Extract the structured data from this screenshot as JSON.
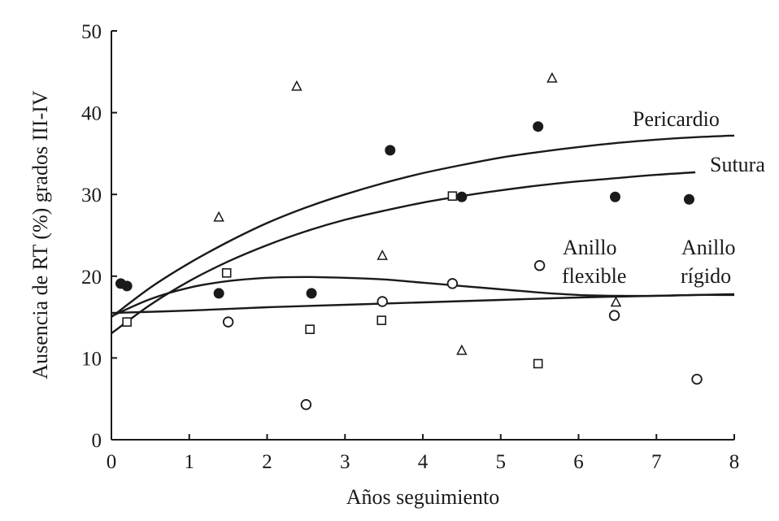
{
  "chart_data": {
    "type": "scatter",
    "xlabel": "Años seguimiento",
    "ylabel": "Ausencia de RT (%) grados III-IV",
    "xlim": [
      0,
      8
    ],
    "ylim": [
      0,
      50
    ],
    "x_ticks": [
      "0",
      "1",
      "2",
      "3",
      "4",
      "5",
      "6",
      "7",
      "8"
    ],
    "y_ticks": [
      "0",
      "10",
      "20",
      "30",
      "40",
      "50"
    ],
    "grid": false,
    "series": [
      {
        "marker": "filled-circle",
        "points": [
          [
            0.12,
            19.1
          ],
          [
            0.2,
            18.8
          ],
          [
            1.38,
            17.9
          ],
          [
            2.57,
            17.9
          ],
          [
            3.58,
            35.4
          ],
          [
            4.5,
            29.7
          ],
          [
            5.48,
            38.3
          ],
          [
            6.47,
            29.7
          ],
          [
            7.42,
            29.4
          ]
        ]
      },
      {
        "marker": "triangle",
        "points": [
          [
            1.38,
            27.2
          ],
          [
            2.38,
            43.2
          ],
          [
            3.48,
            22.5
          ],
          [
            4.5,
            10.9
          ],
          [
            5.66,
            44.2
          ],
          [
            6.48,
            16.8
          ]
        ]
      },
      {
        "marker": "open-square",
        "points": [
          [
            0.2,
            14.4
          ],
          [
            1.48,
            20.4
          ],
          [
            2.55,
            13.5
          ],
          [
            3.47,
            14.6
          ],
          [
            4.38,
            29.8
          ],
          [
            5.48,
            9.3
          ]
        ]
      },
      {
        "marker": "open-circle",
        "points": [
          [
            1.5,
            14.4
          ],
          [
            2.5,
            4.3
          ],
          [
            3.48,
            16.9
          ],
          [
            4.38,
            19.1
          ],
          [
            5.5,
            21.3
          ],
          [
            6.46,
            15.2
          ],
          [
            7.52,
            7.4
          ]
        ]
      }
    ],
    "curves": [
      {
        "label": "Pericardio",
        "x": [
          0,
          0.5,
          1,
          1.5,
          2,
          2.5,
          3,
          3.5,
          4,
          4.5,
          5,
          5.5,
          6,
          6.5,
          7,
          7.5,
          8
        ],
        "y": [
          15.0,
          18.6,
          21.6,
          24.2,
          26.5,
          28.4,
          30.0,
          31.4,
          32.6,
          33.6,
          34.5,
          35.2,
          35.8,
          36.3,
          36.7,
          37.0,
          37.2
        ]
      },
      {
        "label": "Sutura",
        "x": [
          0,
          0.5,
          1,
          1.5,
          2,
          2.5,
          3,
          3.5,
          4,
          4.5,
          5,
          5.5,
          6,
          6.5,
          7,
          7.5
        ],
        "y": [
          13.0,
          16.5,
          19.4,
          21.8,
          23.8,
          25.5,
          26.9,
          28.0,
          29.0,
          29.8,
          30.5,
          31.1,
          31.6,
          32.0,
          32.4,
          32.7
        ]
      },
      {
        "label": "Anillo flexible",
        "x": [
          0,
          0.5,
          1,
          1.5,
          2,
          2.5,
          3,
          3.5,
          4,
          4.5,
          5,
          5.5,
          6,
          6.5,
          7,
          7.5,
          8
        ],
        "y": [
          15.1,
          17.2,
          18.6,
          19.4,
          19.8,
          19.9,
          19.8,
          19.6,
          19.2,
          18.8,
          18.4,
          18.0,
          17.7,
          17.6,
          17.6,
          17.7,
          17.7
        ]
      },
      {
        "label": "Anillo rígido",
        "x": [
          0,
          1,
          2,
          3,
          4,
          5,
          6,
          7,
          8
        ],
        "y": [
          15.5,
          15.8,
          16.2,
          16.5,
          16.8,
          17.1,
          17.4,
          17.6,
          17.8
        ]
      }
    ],
    "annotations": [
      {
        "text": "Pericardio"
      },
      {
        "text": "Sutura"
      },
      {
        "text": "Anillo",
        "text2": "flexible"
      },
      {
        "text": "Anillo",
        "text2": "rígido"
      }
    ]
  }
}
